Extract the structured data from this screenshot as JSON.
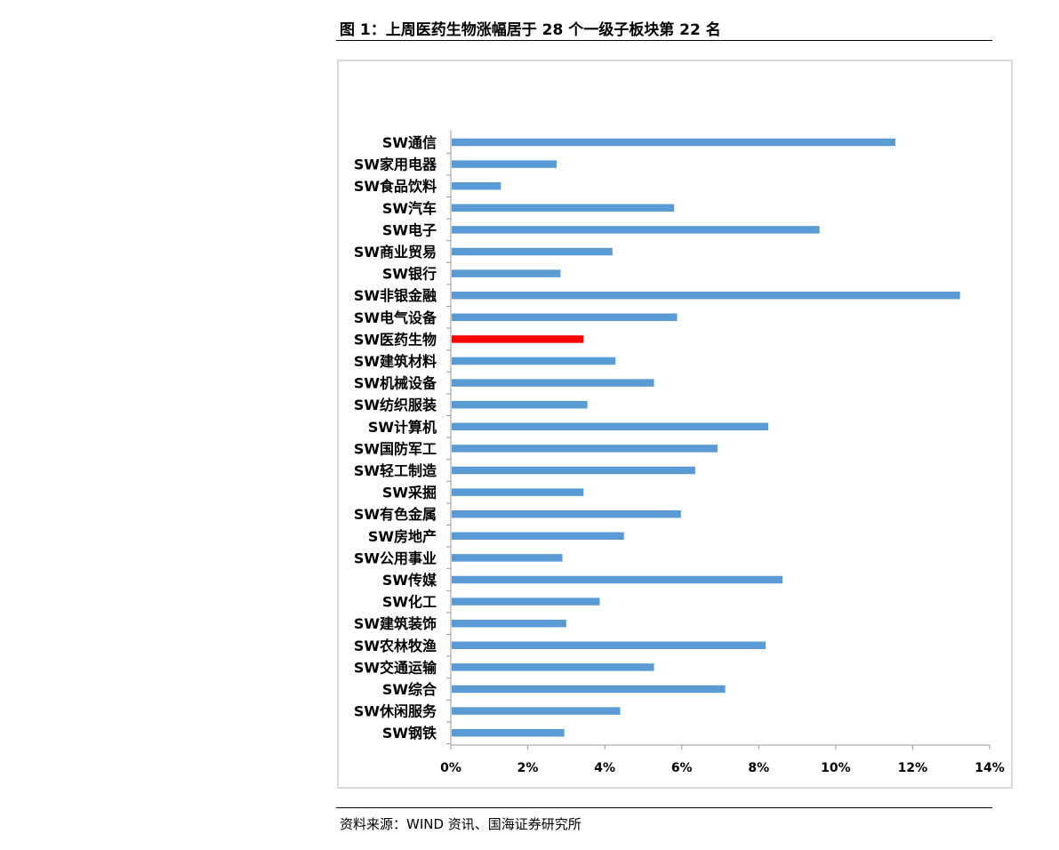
{
  "figure": {
    "title": "图 1：上周医药生物涨幅居于 28 个一级子板块第 22 名",
    "source": "资料来源：WIND 资讯、国海证券研究所"
  },
  "colors": {
    "bar": "#5b9bd5",
    "highlight": "#ff0000",
    "axis": "#999999",
    "frame": "#d9d9d9"
  },
  "chart_data": {
    "type": "bar",
    "orientation": "horizontal",
    "title": "",
    "xlabel": "",
    "ylabel": "",
    "xlim": [
      0,
      14
    ],
    "tick_values": [
      0,
      2,
      4,
      6,
      8,
      10,
      12,
      14
    ],
    "tick_labels": [
      "0%",
      "2%",
      "4%",
      "6%",
      "8%",
      "10%",
      "12%",
      "14%"
    ],
    "grid": false,
    "legend": "none",
    "highlight_category": "SW医药生物",
    "categories": [
      "SW通信",
      "SW家用电器",
      "SW食品饮料",
      "SW汽车",
      "SW电子",
      "SW商业贸易",
      "SW银行",
      "SW非银金融",
      "SW电气设备",
      "SW医药生物",
      "SW建筑材料",
      "SW机械设备",
      "SW纺织服装",
      "SW计算机",
      "SW国防军工",
      "SW轻工制造",
      "SW采掘",
      "SW有色金属",
      "SW房地产",
      "SW公用事业",
      "SW传媒",
      "SW化工",
      "SW建筑装饰",
      "SW农林牧渔",
      "SW交通运输",
      "SW综合",
      "SW休闲服务",
      "SW钢铁"
    ],
    "values": [
      11.55,
      2.75,
      1.3,
      5.8,
      9.58,
      4.2,
      2.85,
      13.23,
      5.88,
      3.45,
      4.28,
      5.28,
      3.55,
      8.25,
      6.93,
      6.35,
      3.45,
      5.98,
      4.5,
      2.9,
      8.62,
      3.87,
      3.0,
      8.18,
      5.28,
      7.13,
      4.4,
      2.95
    ],
    "unit": "%"
  }
}
